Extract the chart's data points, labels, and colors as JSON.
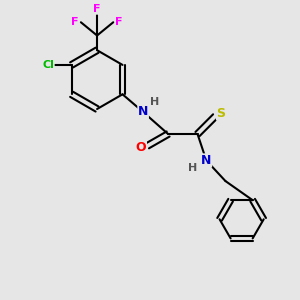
{
  "bg_color": "#e6e6e6",
  "bond_color": "#000000",
  "bond_width": 1.5,
  "atom_colors": {
    "N": "#0000cc",
    "O": "#ff0000",
    "S": "#bbbb00",
    "F": "#ff00ff",
    "Cl": "#00bb00",
    "H": "#000000"
  },
  "font_size": 8,
  "fig_size": [
    3.0,
    3.0
  ],
  "dpi": 100
}
